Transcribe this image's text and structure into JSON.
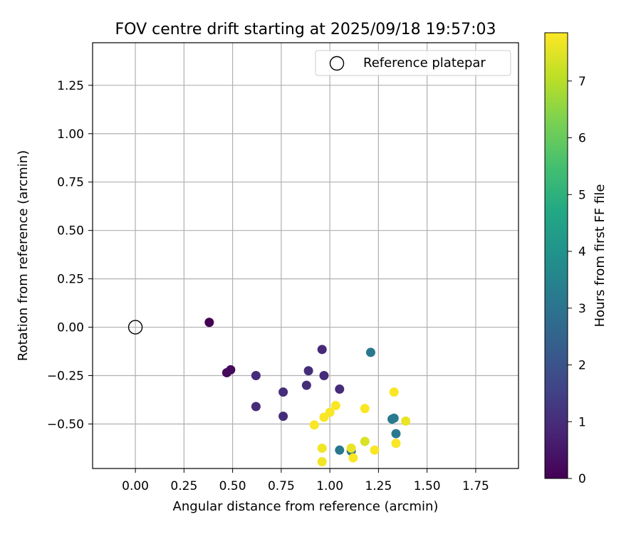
{
  "chart_data": {
    "type": "scatter",
    "title": "FOV centre drift starting at 2025/09/18 19:57:03",
    "xlabel": "Angular distance from reference (arcmin)",
    "ylabel": "Rotation from reference (arcmin)",
    "xlim": [
      -0.22,
      1.97
    ],
    "ylim": [
      -0.73,
      1.47
    ],
    "xticks": [
      0.0,
      0.25,
      0.5,
      0.75,
      1.0,
      1.25,
      1.5,
      1.75
    ],
    "xtick_labels": [
      "0.00",
      "0.25",
      "0.50",
      "0.75",
      "1.00",
      "1.25",
      "1.50",
      "1.75"
    ],
    "yticks": [
      -0.5,
      -0.25,
      0.0,
      0.25,
      0.5,
      0.75,
      1.0,
      1.25
    ],
    "ytick_labels": [
      "−0.50",
      "−0.25",
      "0.00",
      "0.25",
      "0.50",
      "0.75",
      "1.00",
      "1.25"
    ],
    "grid": true,
    "legend": {
      "position": "top-right",
      "entries": [
        "Reference platepar"
      ]
    },
    "reference_point": {
      "x": 0.0,
      "y": 0.0,
      "label": "Reference platepar"
    },
    "colorbar": {
      "label": "Hours from first FF file",
      "range": [
        0,
        7.85
      ],
      "ticks": [
        0,
        1,
        2,
        3,
        4,
        5,
        6,
        7
      ],
      "tick_labels": [
        "0",
        "1",
        "2",
        "3",
        "4",
        "5",
        "6",
        "7"
      ],
      "colormap": "viridis"
    },
    "points": [
      {
        "x": 0.38,
        "y": 0.025,
        "hours": 0.0
      },
      {
        "x": 0.49,
        "y": -0.22,
        "hours": 0.2
      },
      {
        "x": 0.47,
        "y": -0.235,
        "hours": 0.2
      },
      {
        "x": 0.62,
        "y": -0.25,
        "hours": 1.0
      },
      {
        "x": 0.62,
        "y": -0.41,
        "hours": 1.0
      },
      {
        "x": 0.76,
        "y": -0.335,
        "hours": 1.0
      },
      {
        "x": 0.76,
        "y": -0.46,
        "hours": 1.0
      },
      {
        "x": 0.89,
        "y": -0.225,
        "hours": 1.0
      },
      {
        "x": 0.88,
        "y": -0.3,
        "hours": 1.0
      },
      {
        "x": 0.96,
        "y": -0.115,
        "hours": 0.9
      },
      {
        "x": 0.97,
        "y": -0.25,
        "hours": 1.0
      },
      {
        "x": 1.05,
        "y": -0.32,
        "hours": 1.0
      },
      {
        "x": 1.21,
        "y": -0.13,
        "hours": 3.1
      },
      {
        "x": 1.05,
        "y": -0.635,
        "hours": 3.1
      },
      {
        "x": 1.11,
        "y": -0.64,
        "hours": 3.0
      },
      {
        "x": 1.32,
        "y": -0.475,
        "hours": 3.2
      },
      {
        "x": 1.33,
        "y": -0.47,
        "hours": 3.2
      },
      {
        "x": 1.34,
        "y": -0.55,
        "hours": 3.2
      },
      {
        "x": 0.96,
        "y": -0.625,
        "hours": 7.7
      },
      {
        "x": 0.96,
        "y": -0.695,
        "hours": 7.7
      },
      {
        "x": 0.92,
        "y": -0.505,
        "hours": 7.8
      },
      {
        "x": 0.97,
        "y": -0.465,
        "hours": 7.8
      },
      {
        "x": 1.0,
        "y": -0.44,
        "hours": 7.8
      },
      {
        "x": 1.03,
        "y": -0.405,
        "hours": 7.8
      },
      {
        "x": 1.11,
        "y": -0.625,
        "hours": 7.6
      },
      {
        "x": 1.12,
        "y": -0.675,
        "hours": 7.8
      },
      {
        "x": 1.18,
        "y": -0.59,
        "hours": 7.4
      },
      {
        "x": 1.18,
        "y": -0.42,
        "hours": 7.8
      },
      {
        "x": 1.23,
        "y": -0.635,
        "hours": 7.8
      },
      {
        "x": 1.33,
        "y": -0.335,
        "hours": 7.8
      },
      {
        "x": 1.34,
        "y": -0.6,
        "hours": 7.8
      },
      {
        "x": 1.39,
        "y": -0.485,
        "hours": 7.6
      }
    ]
  }
}
